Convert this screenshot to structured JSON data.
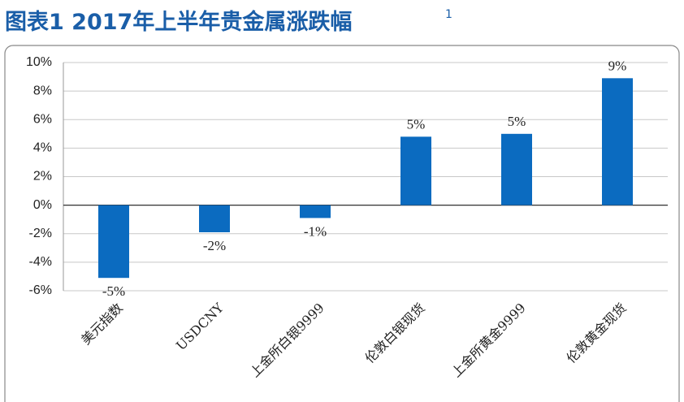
{
  "chart_data": {
    "type": "bar",
    "title": "图表1 2017年上半年贵金属涨跌幅",
    "title_superscript": "1",
    "categories": [
      "美元指数",
      "USDCNY",
      "上金所白银9999",
      "伦敦白银现货",
      "上金所黄金9999",
      "伦敦黄金现货"
    ],
    "values": [
      -5.1,
      -1.9,
      -0.9,
      4.8,
      5.0,
      8.9
    ],
    "value_labels": [
      "-5%",
      "-2%",
      "-1%",
      "5%",
      "5%",
      "9%"
    ],
    "color": "#0b6bc0",
    "ylim": [
      -6,
      10
    ],
    "yticks": [
      {
        "value": -6,
        "label": "-6%"
      },
      {
        "value": -4,
        "label": "-4%"
      },
      {
        "value": -2,
        "label": "-2%"
      },
      {
        "value": 0,
        "label": "0%"
      },
      {
        "value": 2,
        "label": "2%"
      },
      {
        "value": 4,
        "label": "4%"
      },
      {
        "value": 6,
        "label": "6%"
      },
      {
        "value": 8,
        "label": "8%"
      },
      {
        "value": 10,
        "label": "10%"
      }
    ],
    "grid": true
  }
}
